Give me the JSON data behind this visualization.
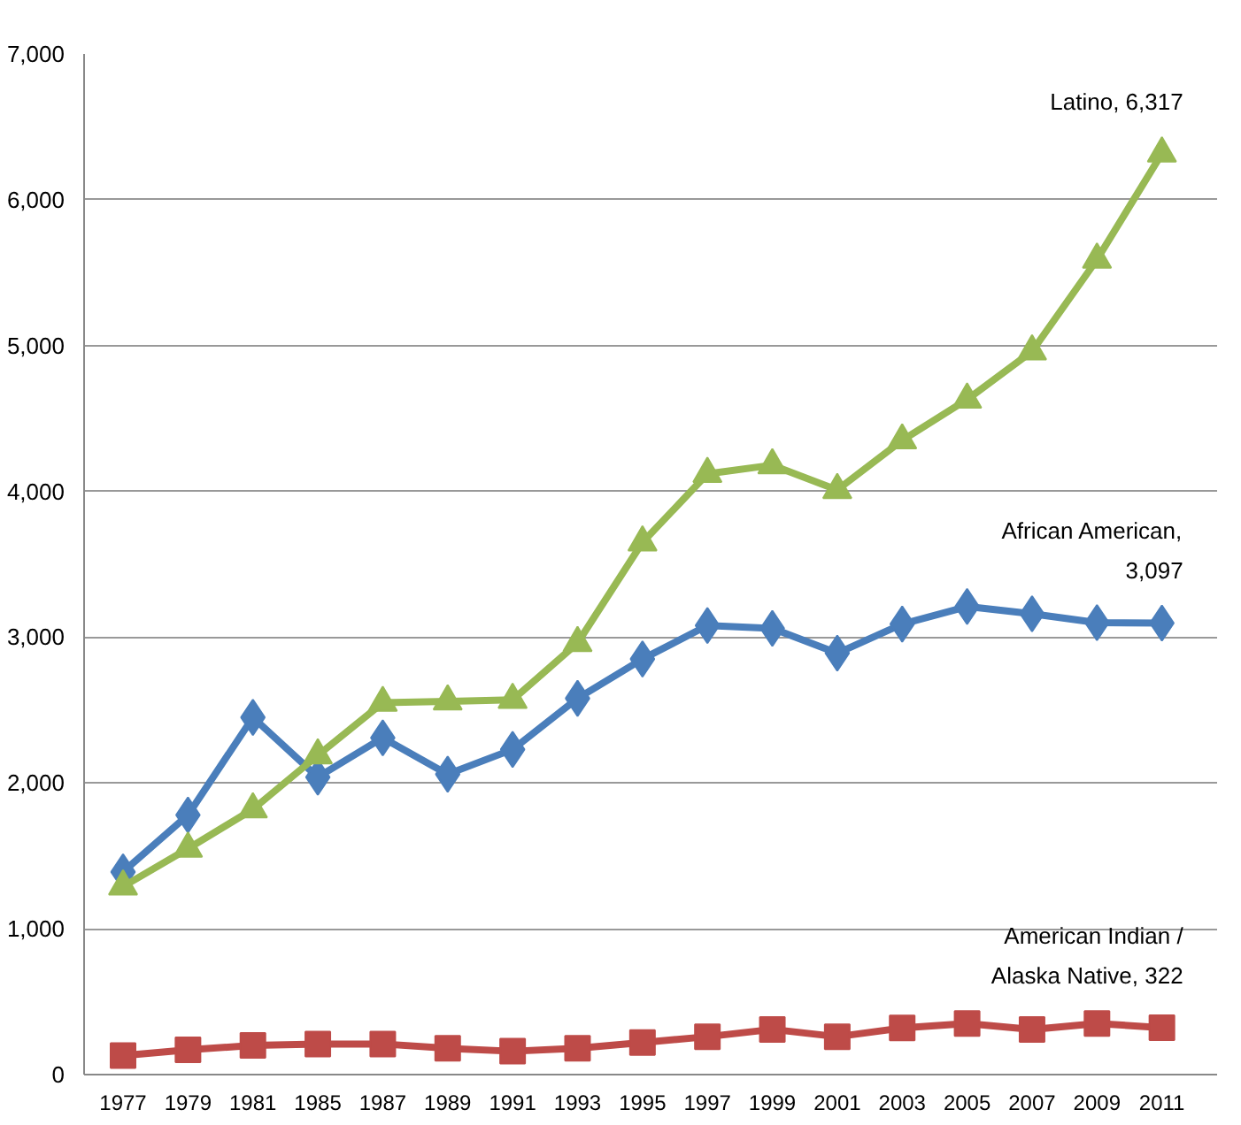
{
  "chart_data": {
    "type": "line",
    "categories": [
      "1977",
      "1979",
      "1981",
      "1985",
      "1987",
      "1989",
      "1991",
      "1993",
      "1995",
      "1997",
      "1999",
      "2001",
      "2003",
      "2005",
      "2007",
      "2009",
      "2011"
    ],
    "series": [
      {
        "color": "#4a7ebb",
        "marker": "diamond",
        "values": [
          1390,
          1780,
          2450,
          2040,
          2310,
          2060,
          2230,
          2580,
          2850,
          3080,
          3060,
          2890,
          3090,
          3210,
          3160,
          3100,
          3097
        ]
      },
      {
        "color": "#be4b48",
        "marker": "square",
        "values": [
          130,
          170,
          200,
          210,
          210,
          180,
          160,
          180,
          220,
          260,
          310,
          260,
          320,
          350,
          310,
          350,
          322
        ]
      },
      {
        "color": "#98b954",
        "marker": "triangle",
        "values": [
          1290,
          1550,
          1820,
          2190,
          2550,
          2560,
          2570,
          2960,
          3650,
          4120,
          4180,
          4010,
          4350,
          4630,
          4960,
          5590,
          6317
        ]
      }
    ],
    "ylim": [
      0,
      7000
    ],
    "yticks": [
      {
        "value": 0,
        "label": "0"
      },
      {
        "value": 1000,
        "label": "1,000"
      },
      {
        "value": 2000,
        "label": "2,000"
      },
      {
        "value": 3000,
        "label": "3,000"
      },
      {
        "value": 4000,
        "label": "4,000"
      },
      {
        "value": 5000,
        "label": "5,000"
      },
      {
        "value": 6000,
        "label": "6,000"
      },
      {
        "value": 7000,
        "label": "7,000"
      }
    ],
    "grid": "y",
    "line_style": "solid",
    "annotations": [
      {
        "text": "Latino, 6,317",
        "x": "2011",
        "y": 6317
      },
      {
        "text": "African American,\n3,097",
        "x": "2011",
        "y": 3097
      },
      {
        "text": "American Indian /\nAlaska Native, 322",
        "x": "2011",
        "y": 322
      }
    ]
  }
}
